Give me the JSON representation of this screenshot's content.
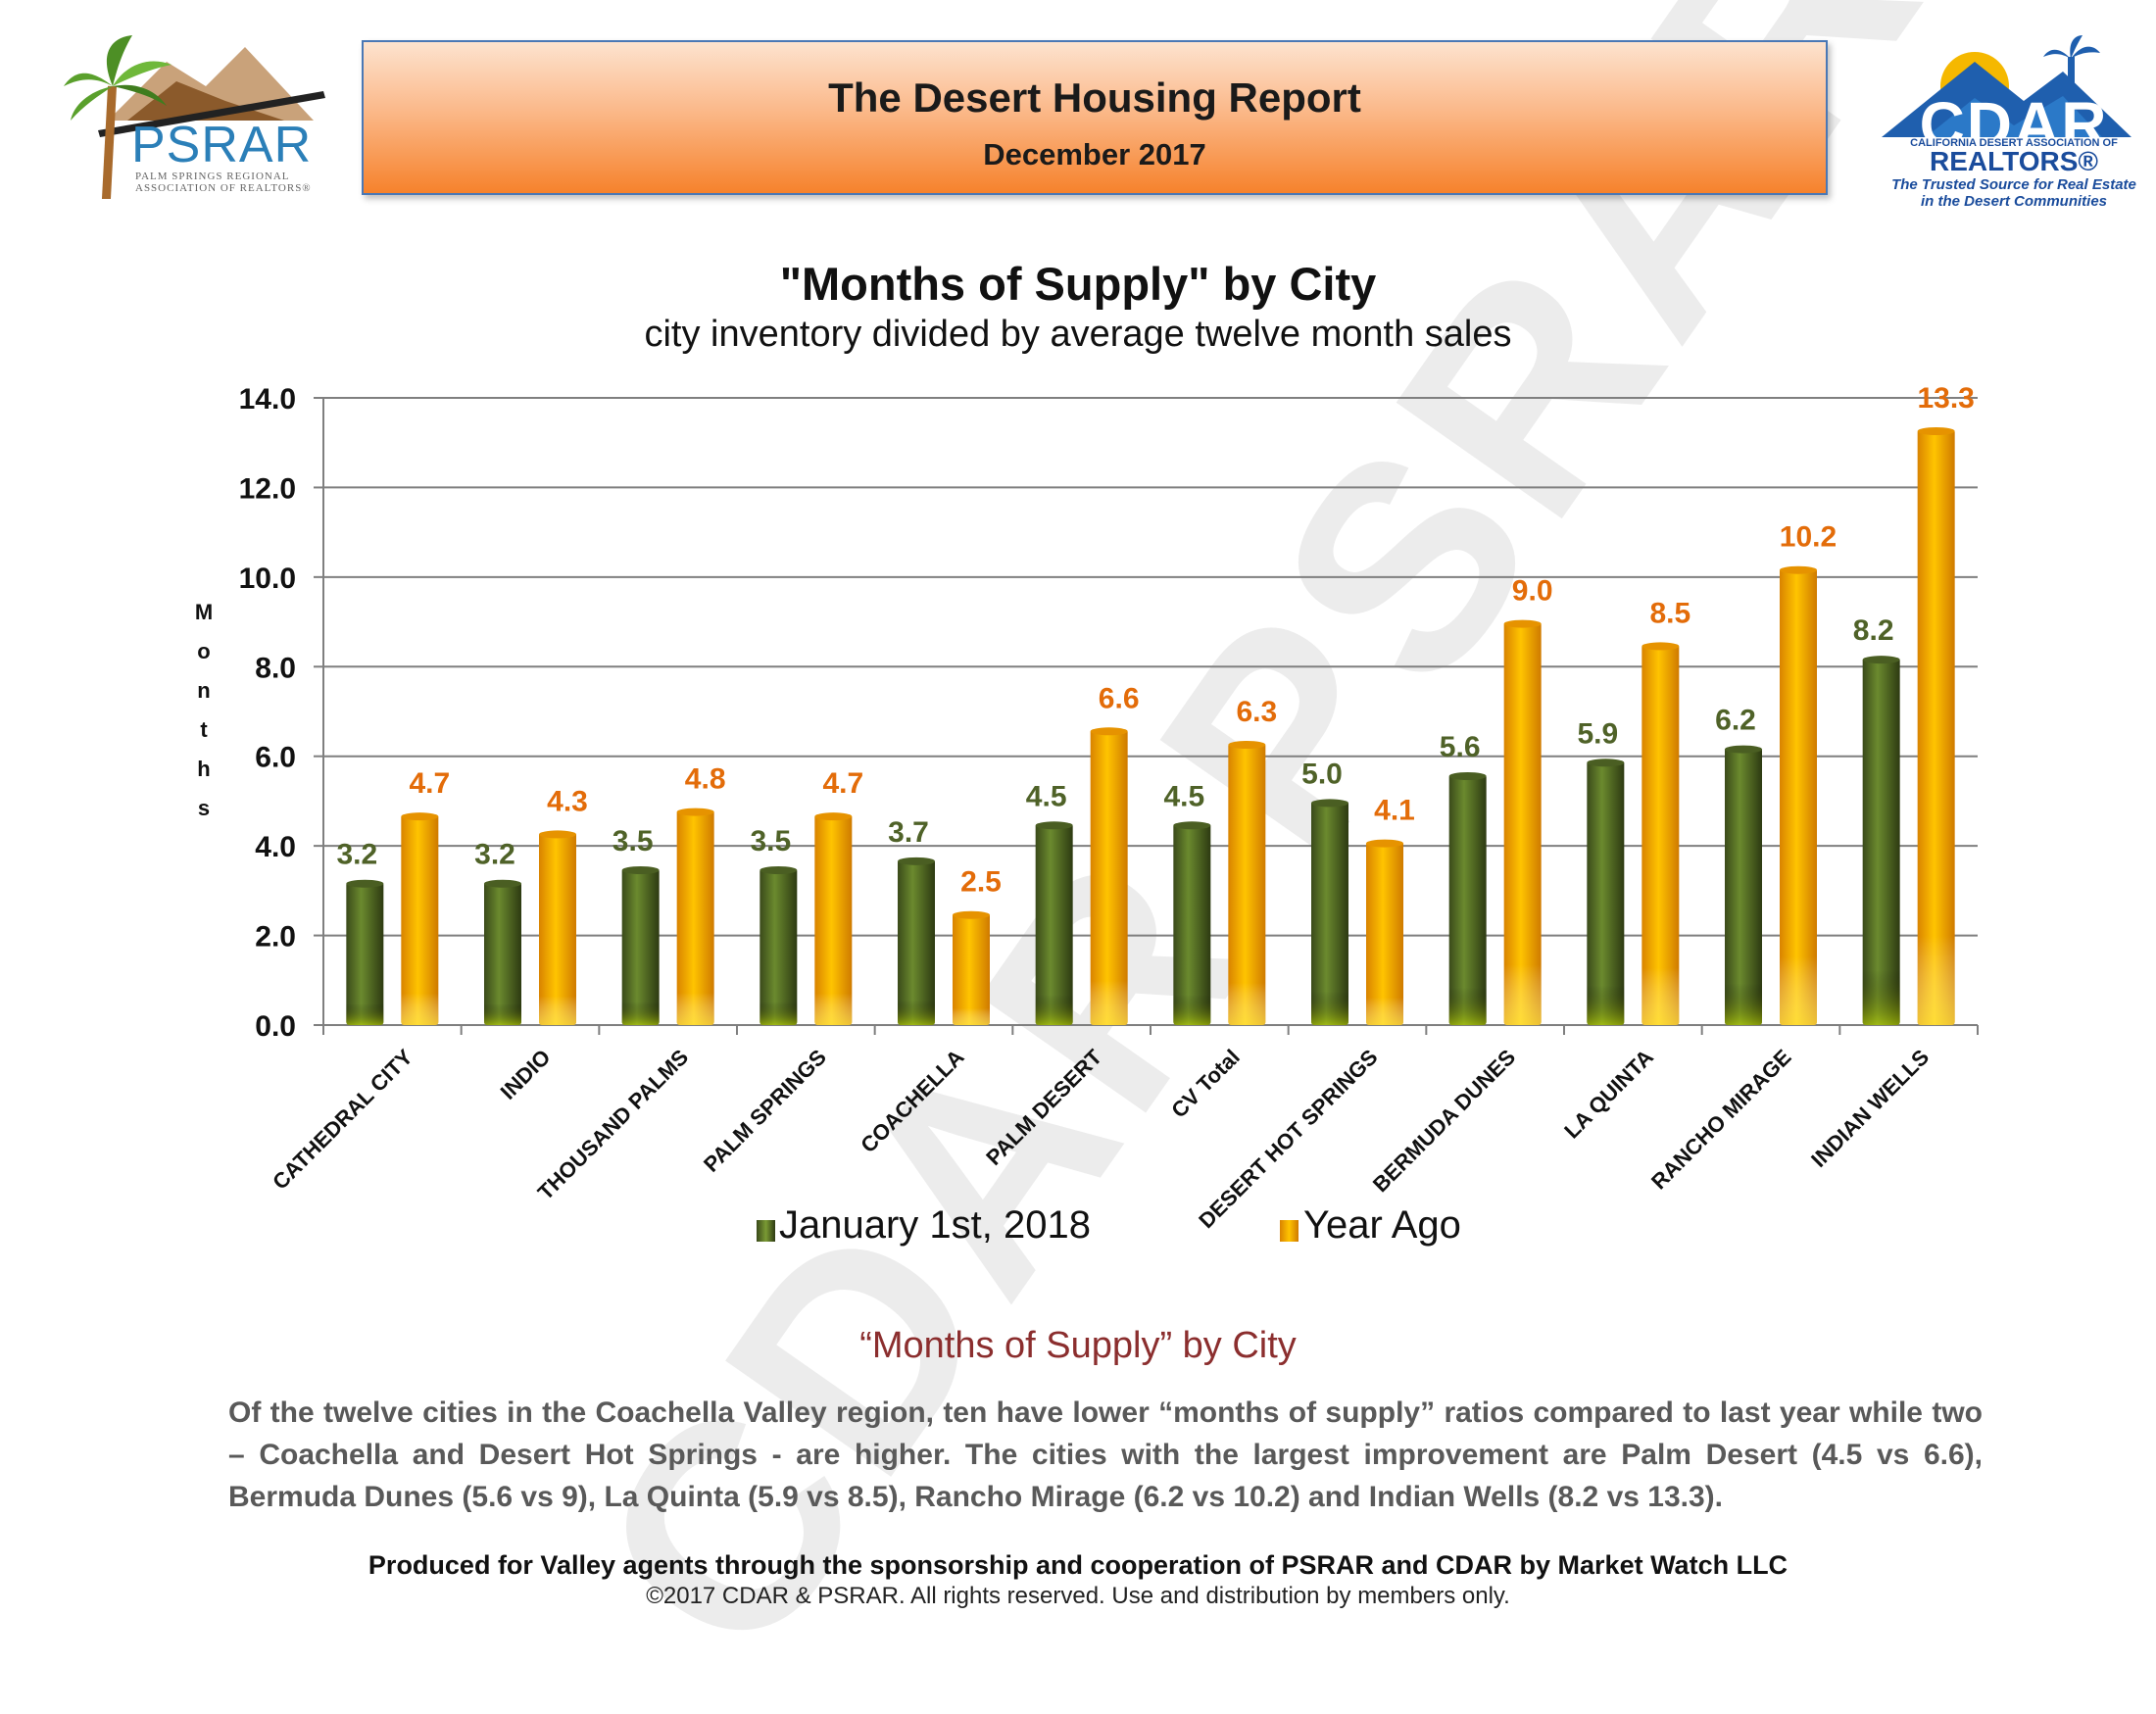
{
  "header": {
    "title": "The Desert Housing Report",
    "subtitle": "December 2017"
  },
  "logos": {
    "psrar": {
      "name": "PSRAR",
      "line1": "PALM SPRINGS REGIONAL",
      "line2": "ASSOCIATION OF REALTORS®"
    },
    "cdar": {
      "name": "CDAR",
      "assoc": "CALIFORNIA DESERT ASSOCIATION OF",
      "realtors": "REALTORS®",
      "tagline1": "The Trusted Source for Real Estate",
      "tagline2": "in the Desert Communities"
    }
  },
  "watermark": "CDAR PSRAR",
  "chart_data": {
    "type": "bar",
    "title": "\"Months of Supply\" by City",
    "subtitle": "city inventory divided by average twelve month sales",
    "ylabel": "Months",
    "ylim": [
      0,
      14
    ],
    "yticks": [
      "0.0",
      "2.0",
      "4.0",
      "6.0",
      "8.0",
      "10.0",
      "12.0",
      "14.0"
    ],
    "grid": true,
    "legend": "bottom",
    "categories": [
      "CATHEDRAL CITY",
      "INDIO",
      "THOUSAND PALMS",
      "PALM SPRINGS",
      "COACHELLA",
      "PALM DESERT",
      "CV Total",
      "DESERT HOT SPRINGS",
      "BERMUDA DUNES",
      "LA QUINTA",
      "RANCHO MIRAGE",
      "INDIAN WELLS"
    ],
    "series": [
      {
        "name": "January 1st, 2018",
        "color": "#556b2f",
        "values": [
          3.2,
          3.2,
          3.5,
          3.5,
          3.7,
          4.5,
          4.5,
          5.0,
          5.6,
          5.9,
          6.2,
          8.2
        ],
        "labels": [
          "3.2",
          "3.2",
          "3.5",
          "3.5",
          "3.7",
          "4.5",
          "4.5",
          "5.0",
          "5.6",
          "5.9",
          "6.2",
          "8.2"
        ]
      },
      {
        "name": "Year Ago",
        "color": "#f5a000",
        "values": [
          4.7,
          4.3,
          4.8,
          4.7,
          2.5,
          6.6,
          6.3,
          4.1,
          9.0,
          8.5,
          10.2,
          13.3
        ],
        "labels": [
          "4.7",
          "4.3",
          "4.8",
          "4.7",
          "2.5",
          "6.6",
          "6.3",
          "4.1",
          "9.0",
          "8.5",
          "10.2",
          "13.3"
        ]
      }
    ],
    "label_colors": {
      "series1": "#4f6228",
      "series2": "#e36c09"
    }
  },
  "analysis": {
    "title": "“Months of Supply” by City",
    "body": "Of the twelve cities in the Coachella Valley region, ten have lower “months of supply” ratios compared to last year while two – Coachella and Desert Hot Springs - are higher. The cities with the largest improvement are Palm Desert (4.5 vs 6.6), Bermuda Dunes (5.6 vs 9), La Quinta (5.9 vs 8.5), Rancho Mirage (6.2 vs 10.2) and Indian Wells (8.2 vs 13.3)."
  },
  "footer": {
    "produced": "Produced for Valley agents through the sponsorship and cooperation of PSRAR and CDAR by Market Watch LLC",
    "copyright": "©2017 CDAR & PSRAR.  All rights reserved.  Use and distribution by members only."
  }
}
